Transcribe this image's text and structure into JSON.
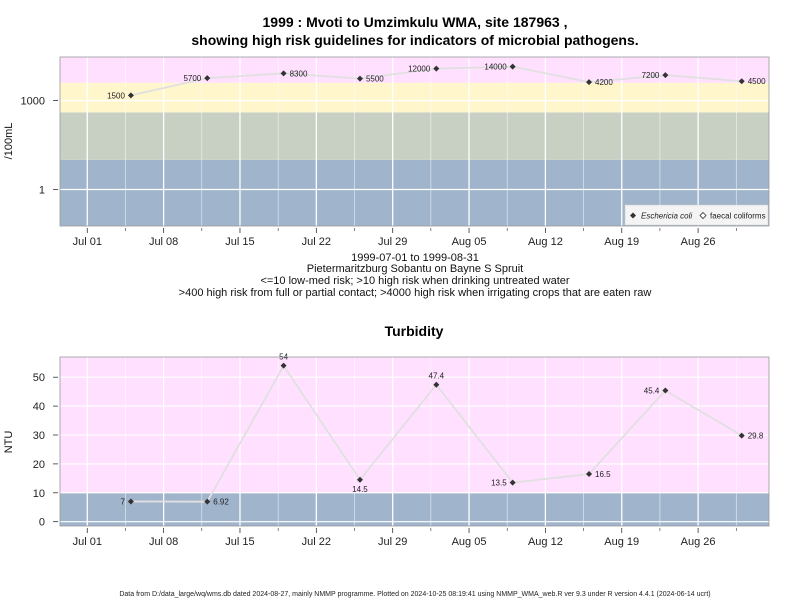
{
  "colors": {
    "pink": "#FFE0FF",
    "yellow": "#FFF6CC",
    "gray_green": "#C8D0C4",
    "blue_gray": "#A0B4CC",
    "line": "#E0E0E0",
    "marker": "#333333"
  },
  "top_chart": {
    "title_line1": "1999 : Mvoti to Umzimkulu WMA, site 187963 ,",
    "title_line2": "showing high risk guidelines for indicators of microbial pathogens.",
    "ylabel": "/100mL",
    "sub1": "1999-07-01 to 1999-08-31",
    "sub2": "Pietermaritzburg Sobantu on Bayne S Spruit",
    "sub3": "<=10 low-med risk; >10 high risk when drinking untreated water",
    "sub4": ">400 high risk from full or partial contact; >4000 high risk when irrigating crops that are eaten raw",
    "legend": {
      "ecoli": "Eschericia coli",
      "faecal": "faecal coliforms"
    },
    "y_ticks": [
      "1",
      "1000"
    ]
  },
  "bottom_chart": {
    "title": "Turbidity",
    "ylabel": "NTU",
    "y_ticks": [
      "0",
      "10",
      "20",
      "30",
      "40",
      "50"
    ]
  },
  "x_ticks": [
    "Jul 01",
    "Jul 08",
    "Jul 15",
    "Jul 22",
    "Jul 29",
    "Aug 05",
    "Aug 12",
    "Aug 19",
    "Aug 26"
  ],
  "footer": "Data from D:/data_large/wq/wms.db dated 2024-08-27, mainly NMMP programme. Plotted on 2024-10-25 08:19:41 using NMMP_WMA_web.R ver 9.3 under R version 4.4.1 (2024-06-14 ucrt)",
  "chart_data": [
    {
      "type": "line",
      "title": "1999 : Mvoti to Umzimkulu WMA, site 187963 , showing high risk guidelines for indicators of microbial pathogens.",
      "ylabel": "/100mL",
      "y_scale": "log",
      "x_start": "1999-07-01",
      "x_end": "1999-08-31",
      "x": [
        "1999-07-05",
        "1999-07-12",
        "1999-07-19",
        "1999-07-26",
        "1999-08-02",
        "1999-08-09",
        "1999-08-16",
        "1999-08-23",
        "1999-08-30"
      ],
      "series": [
        {
          "name": "Eschericia coli",
          "values": [
            1500,
            5700,
            8300,
            5500,
            12000,
            14000,
            4200,
            7200,
            4500
          ],
          "labels": [
            "1500",
            "5700",
            "8300",
            "5500",
            "12000",
            "14000",
            "4200",
            "7200",
            "4500"
          ]
        }
      ],
      "risk_bands": [
        {
          "from": 0,
          "to": 10,
          "color": "#A0B4CC"
        },
        {
          "from": 10,
          "to": 400,
          "color": "#C8D0C4"
        },
        {
          "from": 400,
          "to": 4000,
          "color": "#FFF6CC"
        },
        {
          "from": 4000,
          "color": "#FFE0FF"
        }
      ],
      "legend_position": "bottom-right",
      "grid": true
    },
    {
      "type": "line",
      "title": "Turbidity",
      "ylabel": "NTU",
      "ylim": [
        -1.5,
        57
      ],
      "x_start": "1999-07-01",
      "x_end": "1999-08-31",
      "x": [
        "1999-07-05",
        "1999-07-12",
        "1999-07-19",
        "1999-07-26",
        "1999-08-02",
        "1999-08-09",
        "1999-08-16",
        "1999-08-23",
        "1999-08-30"
      ],
      "series": [
        {
          "values": [
            7,
            6.92,
            54,
            14.5,
            47.4,
            13.5,
            16.5,
            45.4,
            29.8
          ],
          "labels": [
            "7",
            "6.92",
            "54",
            "14.5",
            "47.4",
            "13.5",
            "16.5",
            "45.4",
            "29.8"
          ]
        }
      ],
      "risk_bands": [
        {
          "from": -1.5,
          "to": 10,
          "color": "#A0B4CC"
        },
        {
          "from": 10,
          "to": 57,
          "color": "#FFE0FF"
        }
      ],
      "grid": true
    }
  ]
}
